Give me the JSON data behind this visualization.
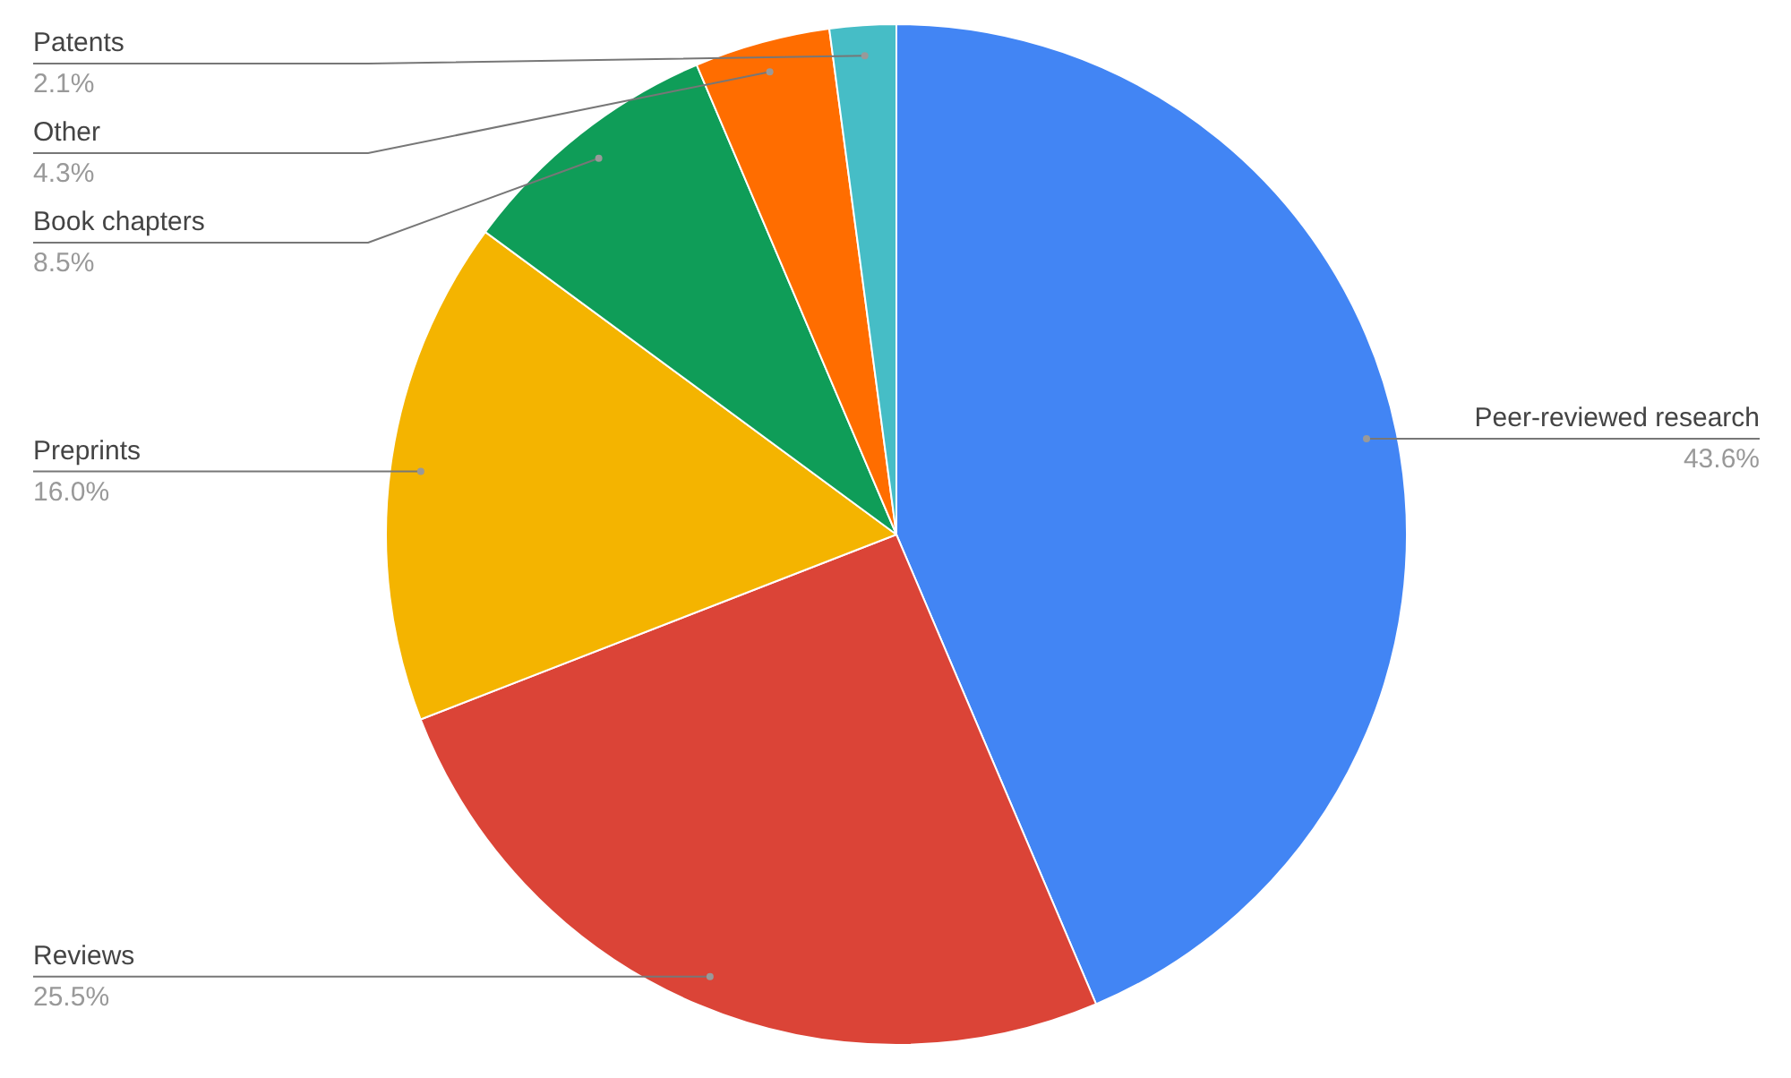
{
  "chart_data": {
    "type": "pie",
    "categories": [
      "Peer-reviewed research",
      "Reviews",
      "Preprints",
      "Book chapters",
      "Other",
      "Patents"
    ],
    "values": [
      43.6,
      25.5,
      16.0,
      8.5,
      4.3,
      2.1
    ],
    "colors": [
      "#4285f4",
      "#db4437",
      "#f4b400",
      "#0f9d58",
      "#ff6d00",
      "#46bdc6"
    ],
    "value_labels": [
      "43.6%",
      "25.5%",
      "16.0%",
      "8.5%",
      "4.3%",
      "2.1%"
    ]
  }
}
